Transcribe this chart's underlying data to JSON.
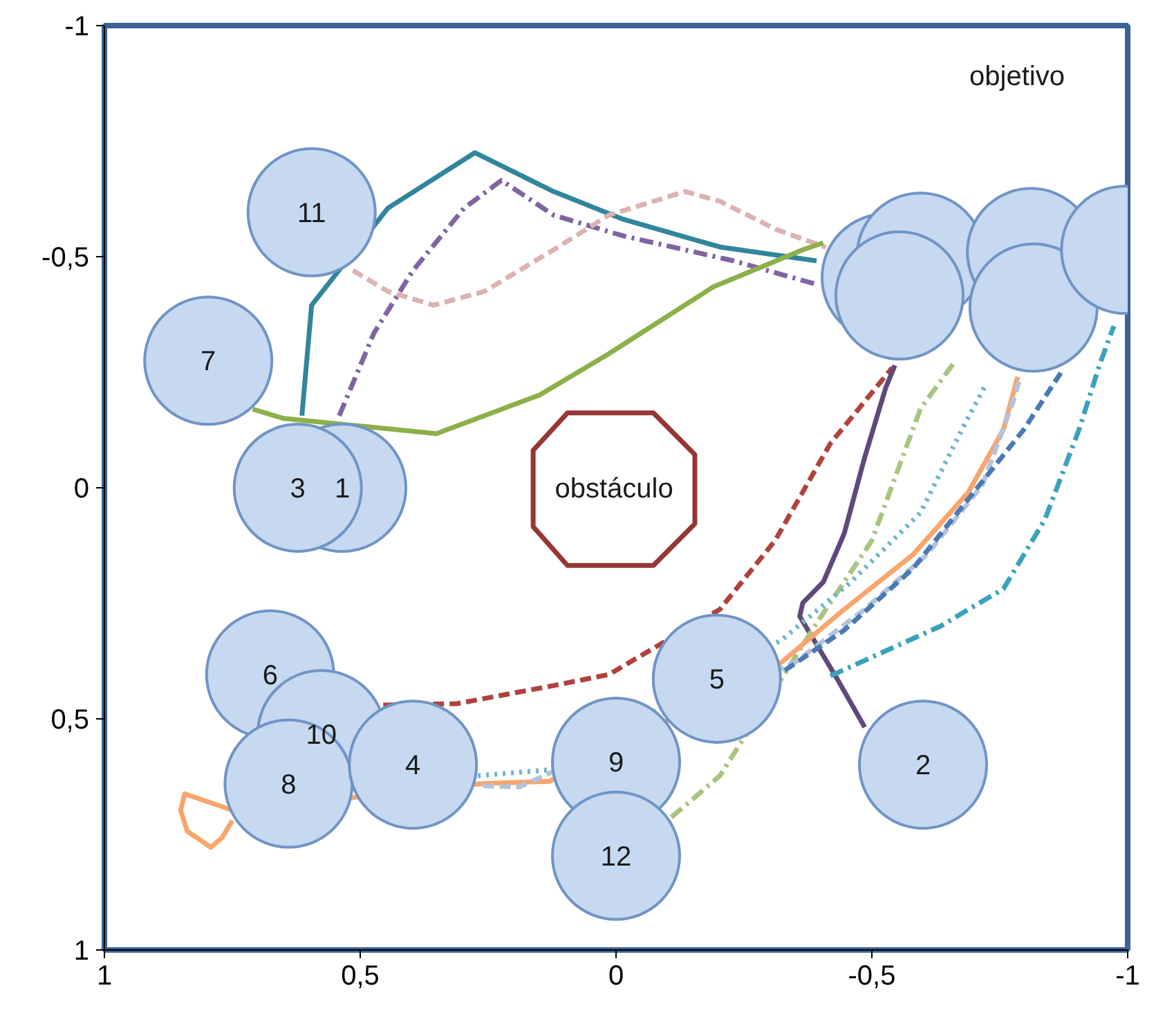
{
  "chart_data": {
    "type": "line",
    "xlim": [
      1,
      -1
    ],
    "ylim": [
      1,
      -1
    ],
    "xticks": [
      1,
      {
        "value": 0.5,
        "label": "0,5"
      },
      0,
      {
        "value": -0.5,
        "label": "-0,5"
      },
      -1
    ],
    "yticks": [
      {
        "value": -1,
        "label": "-1"
      },
      {
        "value": -0.5,
        "label": "-0,5"
      },
      0,
      {
        "value": 0.5,
        "label": "0,5"
      },
      1
    ],
    "grid": false,
    "marker": "none",
    "series": [
      {
        "line_style": "solid",
        "color": "#31859c",
        "x": [
          0.614,
          0.595,
          0.446,
          0.276,
          0.122,
          -0.014,
          -0.203,
          -0.392
        ],
        "values": [
          -0.156,
          -0.395,
          -0.605,
          -0.725,
          -0.641,
          -0.581,
          -0.521,
          -0.491
        ]
      },
      {
        "line_style": "dashdot",
        "color": "#8064a2",
        "x": [
          0.541,
          0.473,
          0.397,
          0.297,
          0.224,
          0.122,
          -0.014,
          -0.23,
          -0.392
        ],
        "values": [
          -0.156,
          -0.335,
          -0.47,
          -0.605,
          -0.665,
          -0.59,
          -0.545,
          -0.491,
          -0.44
        ]
      },
      {
        "line_style": "dashed",
        "color": "#dbb3b1",
        "x": [
          0.514,
          0.446,
          0.357,
          0.257,
          0.122,
          0.014,
          -0.135,
          -0.203,
          -0.311,
          -0.41
        ],
        "values": [
          -0.47,
          -0.425,
          -0.395,
          -0.425,
          -0.515,
          -0.59,
          -0.641,
          -0.62,
          -0.56,
          -0.52
        ]
      },
      {
        "line_style": "solid",
        "color": "#8db04a",
        "x": [
          0.71,
          0.649,
          0.486,
          0.351,
          0.149,
          0.014,
          -0.189,
          -0.365,
          -0.405
        ],
        "values": [
          -0.17,
          -0.15,
          -0.132,
          -0.117,
          -0.201,
          -0.29,
          -0.434,
          -0.515,
          -0.53
        ]
      },
      {
        "line_style": "dashed",
        "color": "#b0423d",
        "x": [
          0.455,
          0.311,
          0.122,
          0.014,
          -0.203,
          -0.311,
          -0.419,
          -0.54
        ],
        "values": [
          0.47,
          0.467,
          0.428,
          0.404,
          0.263,
          0.114,
          -0.096,
          -0.26
        ]
      },
      {
        "line_style": "solid",
        "color": "#5f497a",
        "x": [
          -0.486,
          -0.432,
          -0.359,
          -0.365,
          -0.405,
          -0.446,
          -0.486,
          -0.527,
          -0.545
        ],
        "values": [
          0.518,
          0.413,
          0.278,
          0.249,
          0.204,
          0.099,
          -0.066,
          -0.216,
          -0.265
        ]
      },
      {
        "line_style": "dashdot",
        "color": "#a9c47f",
        "x": [
          -0.108,
          -0.203,
          -0.392,
          -0.5,
          -0.595,
          -0.66
        ],
        "values": [
          0.713,
          0.623,
          0.293,
          0.114,
          -0.171,
          -0.27
        ]
      },
      {
        "line_style": "solid",
        "color": "#f9a56b",
        "x": [
          0.75,
          0.77,
          0.792,
          0.838,
          0.851,
          0.843,
          0.749,
          0.26,
          0.13,
          -0.324,
          -0.446,
          -0.581,
          -0.689,
          -0.757,
          -0.785
        ],
        "values": [
          0.72,
          0.757,
          0.778,
          0.743,
          0.698,
          0.662,
          0.698,
          0.64,
          0.635,
          0.377,
          0.263,
          0.144,
          0.009,
          -0.126,
          -0.24
        ]
      },
      {
        "line_style": "dashed",
        "color": "#b2c3dc",
        "x": [
          0.26,
          0.189,
          -0.351,
          -0.486,
          -0.608,
          -0.716,
          -0.776,
          -0.79
        ],
        "values": [
          0.645,
          0.647,
          0.377,
          0.263,
          0.144,
          -0.006,
          -0.186,
          -0.24
        ]
      },
      {
        "line_style": "dotted",
        "color": "#6fb6cc",
        "x": [
          0.27,
          0.13,
          -0.324,
          -0.459,
          -0.595,
          -0.676,
          -0.722
        ],
        "values": [
          0.623,
          0.61,
          0.329,
          0.204,
          0.054,
          -0.126,
          -0.222
        ]
      },
      {
        "line_style": "dashed",
        "color": "#4a7ab5",
        "x": [
          -0.33,
          -0.446,
          -0.581,
          -0.689,
          -0.797,
          -0.87
        ],
        "values": [
          0.395,
          0.308,
          0.174,
          0.024,
          -0.126,
          -0.25
        ]
      },
      {
        "line_style": "dashdot",
        "color": "#3aa2bb",
        "x": [
          -0.419,
          -0.527,
          -0.635,
          -0.689,
          -0.757,
          -0.838,
          -0.905,
          -0.946,
          -0.973
        ],
        "values": [
          0.407,
          0.353,
          0.299,
          0.263,
          0.219,
          0.069,
          -0.126,
          -0.269,
          -0.35
        ]
      },
      {
        "name": "obstáculo",
        "line_style": "solid",
        "color": "#953735",
        "x": [
          0.011,
          -0.073,
          -0.154,
          -0.154,
          -0.073,
          0.011,
          null,
          0.011,
          0.095,
          0.162,
          0.162,
          0.095,
          0.011
        ],
        "values": [
          -0.162,
          -0.162,
          -0.072,
          0.078,
          0.168,
          0.168,
          null,
          0.168,
          0.168,
          0.084,
          -0.081,
          -0.162,
          -0.162
        ]
      },
      {
        "type": "bubble",
        "marker": "circle",
        "color": "#c6d9f1",
        "x": [
          0.595,
          0.797,
          0.535,
          0.622,
          0.676,
          0.576,
          0.64,
          0.397,
          0.0,
          0.0,
          -0.197,
          -0.6,
          -0.527,
          -0.595,
          -0.554,
          -0.811,
          -0.816,
          -0.995
        ],
        "values": [
          -0.596,
          -0.275,
          0.0,
          0.0,
          0.404,
          0.533,
          0.64,
          0.599,
          0.593,
          0.796,
          0.413,
          0.599,
          -0.455,
          -0.5,
          -0.416,
          -0.51,
          -0.39,
          -0.515
        ],
        "sizes": [
          1,
          1,
          1,
          1,
          1,
          1,
          1,
          1,
          1,
          1,
          1,
          1,
          1,
          1,
          1,
          1,
          1,
          1
        ]
      }
    ],
    "annotations": [
      {
        "text": "11",
        "x": 0.595,
        "y": -0.596
      },
      {
        "text": "7",
        "x": 0.797,
        "y": -0.275
      },
      {
        "text": "3",
        "x": 0.622,
        "y": 0.0
      },
      {
        "text": "1",
        "x": 0.535,
        "y": 0.0
      },
      {
        "text": "6",
        "x": 0.676,
        "y": 0.404
      },
      {
        "text": "10",
        "x": 0.576,
        "y": 0.533
      },
      {
        "text": "8",
        "x": 0.64,
        "y": 0.64
      },
      {
        "text": "4",
        "x": 0.397,
        "y": 0.599
      },
      {
        "text": "9",
        "x": 0.0,
        "y": 0.593
      },
      {
        "text": "12",
        "x": 0.0,
        "y": 0.796
      },
      {
        "text": "5",
        "x": -0.197,
        "y": 0.413
      },
      {
        "text": "2",
        "x": -0.6,
        "y": 0.599
      },
      "objetivo"
    ]
  }
}
